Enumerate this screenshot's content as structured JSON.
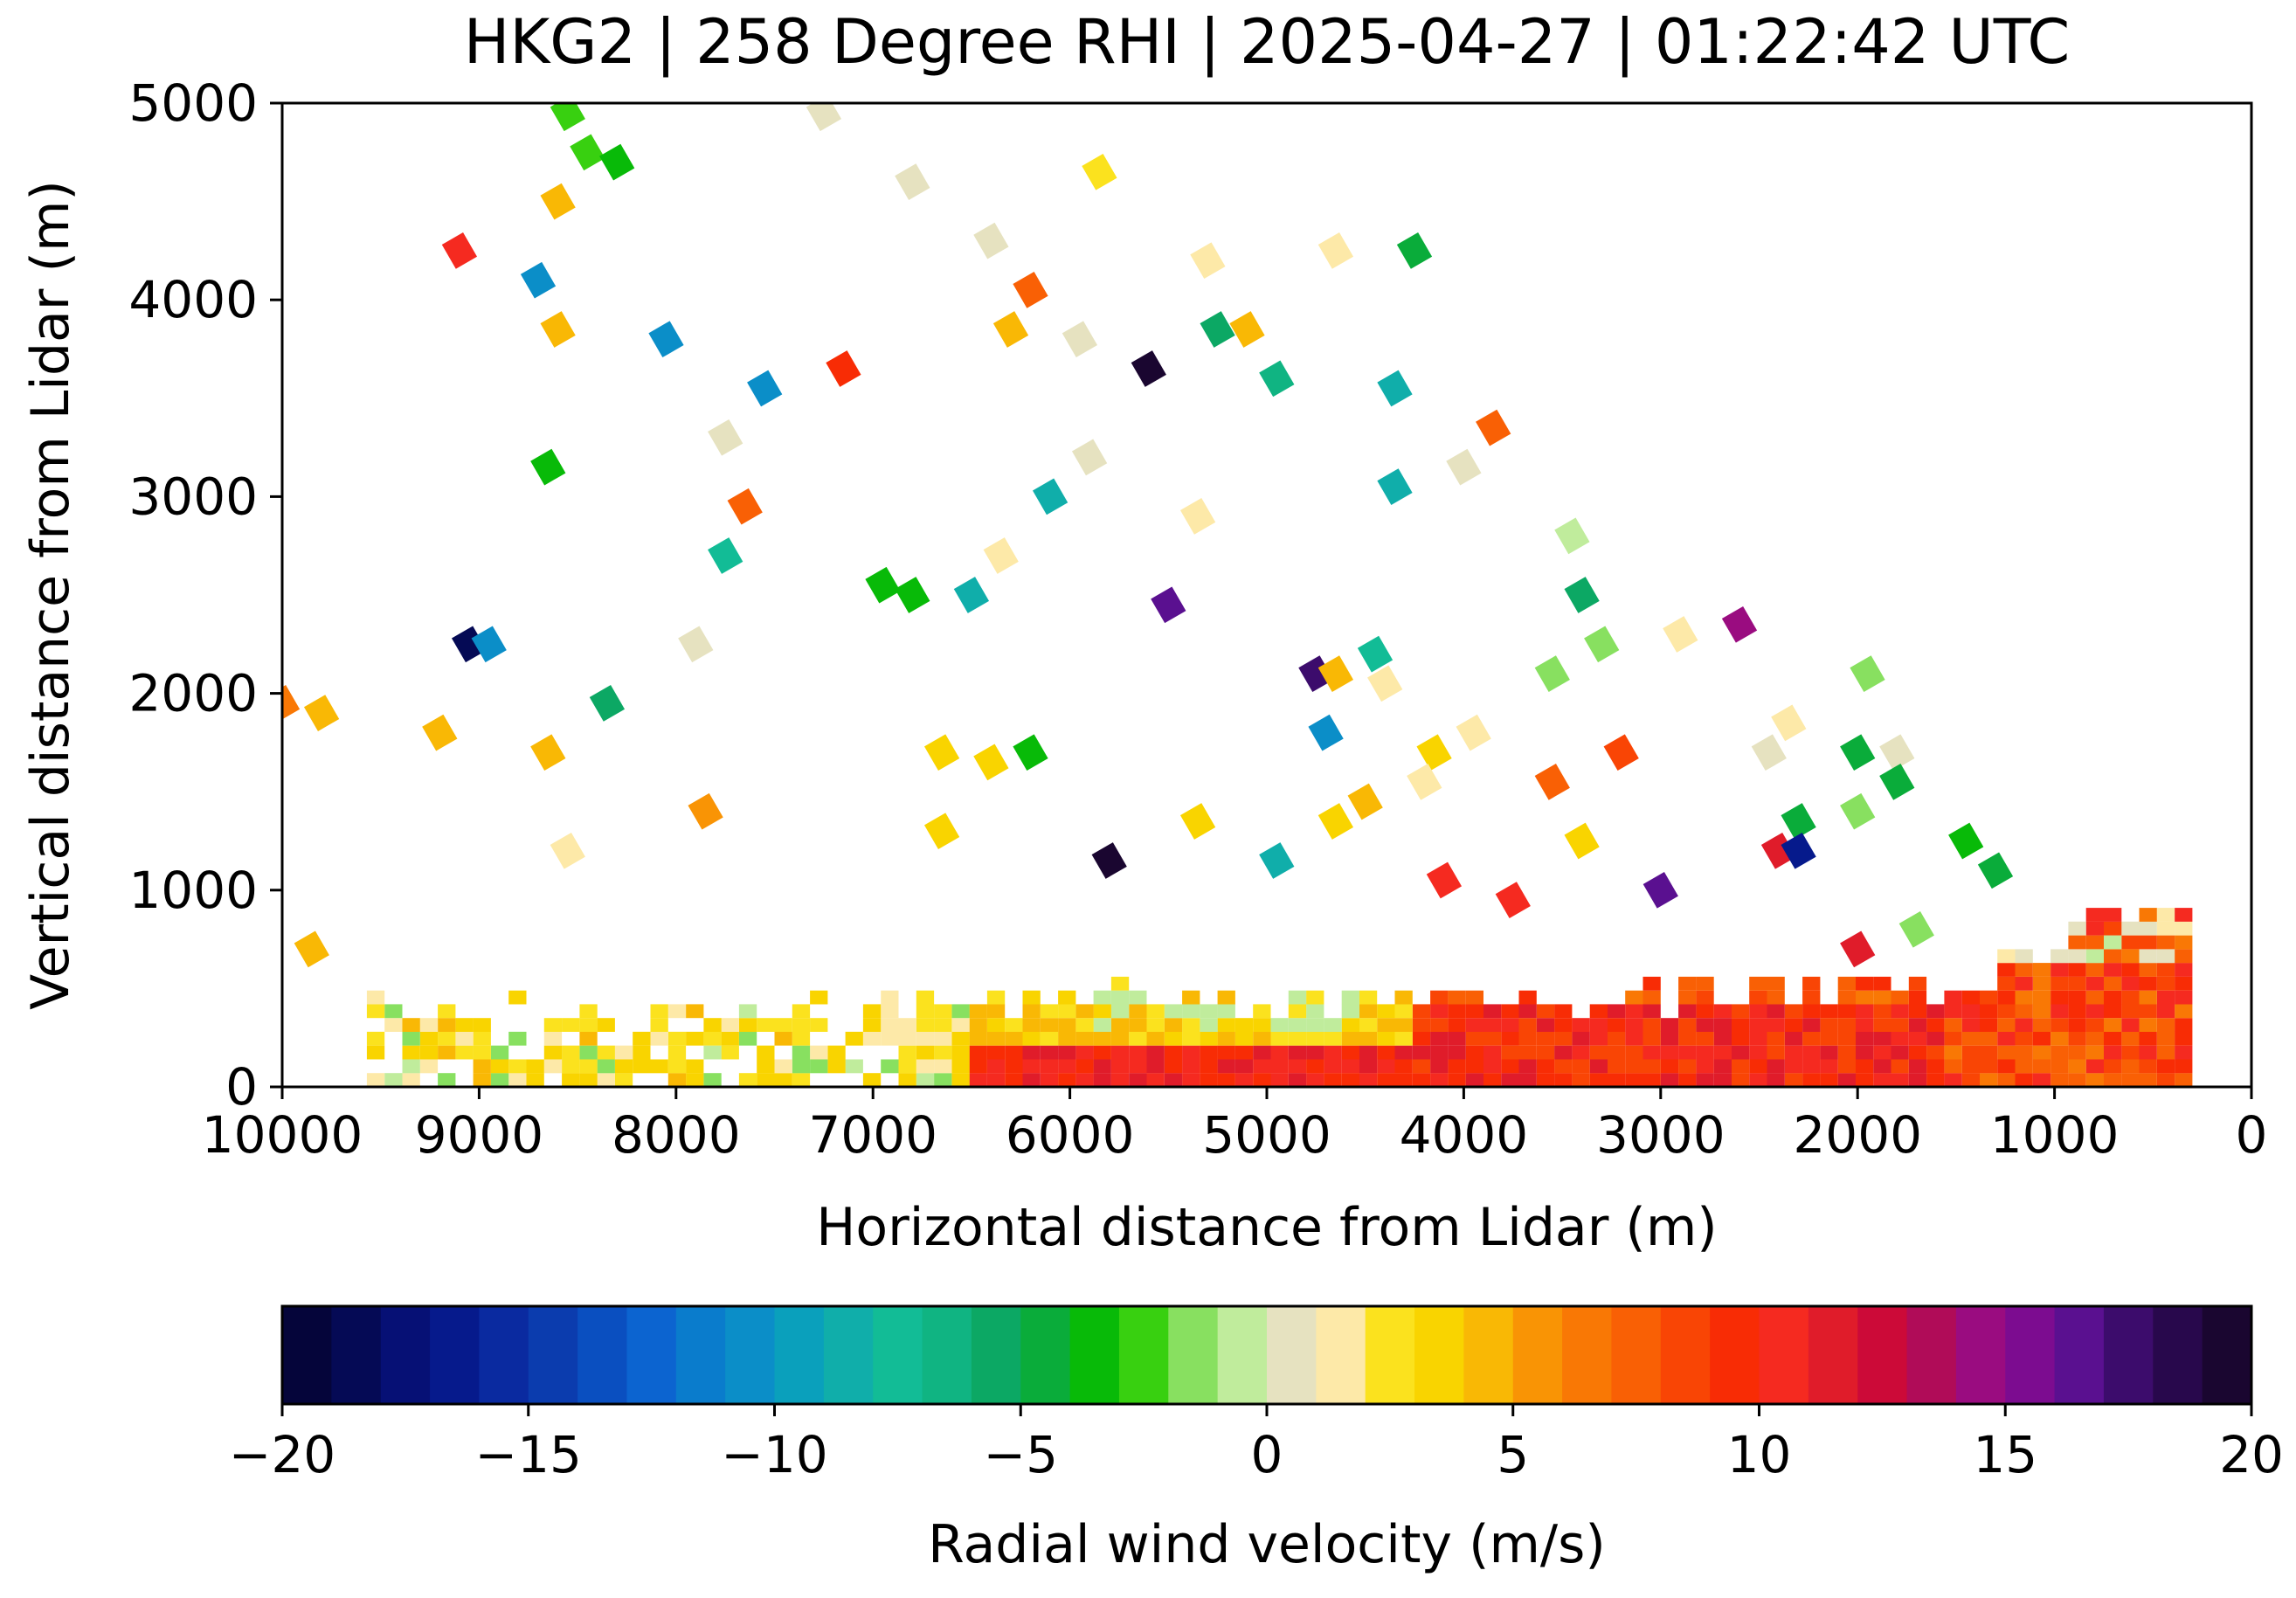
{
  "chart_data": {
    "type": "heatmap",
    "title": "HKG2 | 258 Degree RHI | 2025-04-27 | 01:22:42 UTC",
    "xlabel": "Horizontal distance from Lidar (m)",
    "ylabel": "Vertical distance from Lidar (m)",
    "xlim": [
      10000,
      0
    ],
    "ylim": [
      0,
      5000
    ],
    "xticks": [
      10000,
      9000,
      8000,
      7000,
      6000,
      5000,
      4000,
      3000,
      2000,
      1000,
      0
    ],
    "yticks": [
      0,
      1000,
      2000,
      3000,
      4000,
      5000
    ],
    "colorbar": {
      "label": "Radial wind velocity (m/s)",
      "range": [
        -20,
        20
      ],
      "ticks": [
        -20,
        -15,
        -10,
        -5,
        0,
        5,
        10,
        15,
        20
      ],
      "tick_labels": [
        "−20",
        "−15",
        "−10",
        "−5",
        "0",
        "5",
        "10",
        "15",
        "20"
      ],
      "colors": [
        "#05053a",
        "#050a55",
        "#061075",
        "#061a8c",
        "#0a2aa0",
        "#0b3cae",
        "#0a4fc0",
        "#0c64d0",
        "#0a7ccc",
        "#0b8ec8",
        "#0aa0bc",
        "#10aeaa",
        "#12bc96",
        "#10b482",
        "#0ca864",
        "#0aac3a",
        "#08ba08",
        "#38d010",
        "#88e060",
        "#c0ec9c",
        "#e6e2c0",
        "#fde9a8",
        "#fbe21e",
        "#f9d400",
        "#f9b805",
        "#f99405",
        "#f97805",
        "#f96005",
        "#f94505",
        "#f82c05",
        "#f52a20",
        "#e01c2a",
        "#cc0a38",
        "#b00c58",
        "#9a0c80",
        "#7c0c90",
        "#5a1090",
        "#3c0c6c",
        "#28084c",
        "#1a0630"
      ]
    },
    "sector_note": "dense near-ground sector from 300 m to 9500 m, mostly 0 to 10 m/s",
    "scattered_points": [
      {
        "x": 8550,
        "y": 4950,
        "v": -3
      },
      {
        "x": 8450,
        "y": 4750,
        "v": -3
      },
      {
        "x": 8300,
        "y": 4700,
        "v": -4
      },
      {
        "x": 8600,
        "y": 4500,
        "v": 4
      },
      {
        "x": 9100,
        "y": 4250,
        "v": 10
      },
      {
        "x": 8700,
        "y": 4100,
        "v": -11
      },
      {
        "x": 8600,
        "y": 3850,
        "v": 4
      },
      {
        "x": 8050,
        "y": 3800,
        "v": -11
      },
      {
        "x": 7550,
        "y": 3550,
        "v": -11
      },
      {
        "x": 7150,
        "y": 3650,
        "v": 9
      },
      {
        "x": 7250,
        "y": 4950,
        "v": 0
      },
      {
        "x": 6800,
        "y": 4600,
        "v": 0
      },
      {
        "x": 6400,
        "y": 4300,
        "v": 0
      },
      {
        "x": 6200,
        "y": 4050,
        "v": 7
      },
      {
        "x": 6300,
        "y": 3850,
        "v": 4
      },
      {
        "x": 5950,
        "y": 3800,
        "v": 0
      },
      {
        "x": 5600,
        "y": 3650,
        "v": 19
      },
      {
        "x": 5250,
        "y": 3850,
        "v": -6
      },
      {
        "x": 5100,
        "y": 3850,
        "v": 4
      },
      {
        "x": 5300,
        "y": 4200,
        "v": 1
      },
      {
        "x": 5850,
        "y": 4650,
        "v": 2
      },
      {
        "x": 4650,
        "y": 4250,
        "v": 1
      },
      {
        "x": 4250,
        "y": 4250,
        "v": -5
      },
      {
        "x": 4950,
        "y": 3600,
        "v": -7
      },
      {
        "x": 4350,
        "y": 3550,
        "v": -9
      },
      {
        "x": 8650,
        "y": 3150,
        "v": -4
      },
      {
        "x": 7750,
        "y": 3300,
        "v": 0
      },
      {
        "x": 7650,
        "y": 2950,
        "v": 7
      },
      {
        "x": 7750,
        "y": 2700,
        "v": -8
      },
      {
        "x": 6100,
        "y": 3000,
        "v": -9
      },
      {
        "x": 5900,
        "y": 3200,
        "v": 0
      },
      {
        "x": 4350,
        "y": 3050,
        "v": -9
      },
      {
        "x": 3850,
        "y": 3350,
        "v": 7
      },
      {
        "x": 4000,
        "y": 3150,
        "v": 0
      },
      {
        "x": 6950,
        "y": 2550,
        "v": -4
      },
      {
        "x": 6800,
        "y": 2500,
        "v": -4
      },
      {
        "x": 6500,
        "y": 2500,
        "v": -9
      },
      {
        "x": 6350,
        "y": 2700,
        "v": 1
      },
      {
        "x": 5350,
        "y": 2900,
        "v": 1
      },
      {
        "x": 5500,
        "y": 2450,
        "v": 16
      },
      {
        "x": 3450,
        "y": 2800,
        "v": -1
      },
      {
        "x": 3400,
        "y": 2500,
        "v": -6
      },
      {
        "x": 3300,
        "y": 2250,
        "v": -2
      },
      {
        "x": 2600,
        "y": 2350,
        "v": 14
      },
      {
        "x": 2900,
        "y": 2300,
        "v": 1
      },
      {
        "x": 9050,
        "y": 2250,
        "v": -19
      },
      {
        "x": 8950,
        "y": 2250,
        "v": -11
      },
      {
        "x": 7900,
        "y": 2250,
        "v": 0
      },
      {
        "x": 8350,
        "y": 1950,
        "v": -6
      },
      {
        "x": 4750,
        "y": 2100,
        "v": 17
      },
      {
        "x": 4650,
        "y": 2100,
        "v": 4
      },
      {
        "x": 4450,
        "y": 2200,
        "v": -8
      },
      {
        "x": 4400,
        "y": 2050,
        "v": 1
      },
      {
        "x": 3550,
        "y": 2100,
        "v": -2
      },
      {
        "x": 1950,
        "y": 2100,
        "v": -2
      },
      {
        "x": 10000,
        "y": 1950,
        "v": 6
      },
      {
        "x": 9800,
        "y": 1900,
        "v": 4
      },
      {
        "x": 9200,
        "y": 1800,
        "v": 4
      },
      {
        "x": 8650,
        "y": 1700,
        "v": 4
      },
      {
        "x": 6650,
        "y": 1700,
        "v": 3
      },
      {
        "x": 6400,
        "y": 1650,
        "v": 3
      },
      {
        "x": 6200,
        "y": 1700,
        "v": -4
      },
      {
        "x": 4700,
        "y": 1800,
        "v": -11
      },
      {
        "x": 3950,
        "y": 1800,
        "v": 1
      },
      {
        "x": 4150,
        "y": 1700,
        "v": 3
      },
      {
        "x": 4200,
        "y": 1550,
        "v": 1
      },
      {
        "x": 3550,
        "y": 1550,
        "v": 7
      },
      {
        "x": 2350,
        "y": 1850,
        "v": 1
      },
      {
        "x": 2450,
        "y": 1700,
        "v": 0
      },
      {
        "x": 2000,
        "y": 1700,
        "v": -5
      },
      {
        "x": 1800,
        "y": 1700,
        "v": 0
      },
      {
        "x": 1800,
        "y": 1550,
        "v": -5
      },
      {
        "x": 3200,
        "y": 1700,
        "v": 8
      },
      {
        "x": 4500,
        "y": 1450,
        "v": 4
      },
      {
        "x": 7850,
        "y": 1400,
        "v": 5
      },
      {
        "x": 6650,
        "y": 1300,
        "v": 3
      },
      {
        "x": 5350,
        "y": 1350,
        "v": 3
      },
      {
        "x": 4650,
        "y": 1350,
        "v": 3
      },
      {
        "x": 3400,
        "y": 1250,
        "v": 3
      },
      {
        "x": 2300,
        "y": 1350,
        "v": -5
      },
      {
        "x": 2000,
        "y": 1400,
        "v": -2
      },
      {
        "x": 8550,
        "y": 1200,
        "v": 1
      },
      {
        "x": 5800,
        "y": 1150,
        "v": 19
      },
      {
        "x": 4950,
        "y": 1150,
        "v": -9
      },
      {
        "x": 2400,
        "y": 1200,
        "v": 11
      },
      {
        "x": 2300,
        "y": 1200,
        "v": -17
      },
      {
        "x": 4100,
        "y": 1050,
        "v": 10
      },
      {
        "x": 3750,
        "y": 950,
        "v": 10
      },
      {
        "x": 3000,
        "y": 1000,
        "v": 16
      },
      {
        "x": 1700,
        "y": 800,
        "v": -2
      },
      {
        "x": 2000,
        "y": 700,
        "v": 11
      },
      {
        "x": 9850,
        "y": 700,
        "v": 4
      },
      {
        "x": 1450,
        "y": 1250,
        "v": -4
      },
      {
        "x": 1300,
        "y": 1100,
        "v": -5
      }
    ]
  }
}
